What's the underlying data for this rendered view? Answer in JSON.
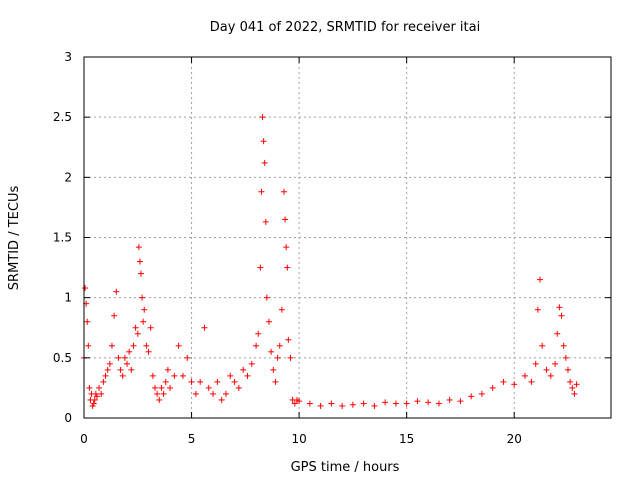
{
  "chart_data": {
    "type": "scatter",
    "title": "Day 041 of 2022, SRMTID for receiver itai",
    "xlabel": "GPS time / hours",
    "ylabel": "SRMTID / TECUs",
    "xlim": [
      0,
      24.5
    ],
    "ylim": [
      0,
      3
    ],
    "xticks": [
      0,
      5,
      10,
      15,
      20
    ],
    "yticks": [
      0,
      0.5,
      1,
      1.5,
      2,
      2.5,
      3
    ],
    "xtick_labels": [
      "0",
      "5",
      "10",
      "15",
      "20"
    ],
    "ytick_labels": [
      "0",
      "0.5",
      "1",
      "1.5",
      "2",
      "2.5",
      "3"
    ],
    "grid": true,
    "marker": "+",
    "color": "#ff0000",
    "series": [
      {
        "name": "SRMTID",
        "x": [
          0.0,
          0.05,
          0.1,
          0.15,
          0.2,
          0.25,
          0.3,
          0.35,
          0.4,
          0.45,
          0.5,
          0.55,
          0.6,
          0.7,
          0.8,
          0.9,
          1.0,
          1.1,
          1.2,
          1.3,
          1.4,
          1.5,
          1.6,
          1.7,
          1.8,
          1.9,
          2.0,
          2.1,
          2.2,
          2.3,
          2.4,
          2.5,
          2.55,
          2.6,
          2.65,
          2.7,
          2.75,
          2.8,
          2.9,
          3.0,
          3.1,
          3.2,
          3.3,
          3.4,
          3.5,
          3.6,
          3.7,
          3.8,
          3.9,
          4.0,
          4.2,
          4.4,
          4.6,
          4.8,
          5.0,
          5.2,
          5.4,
          5.6,
          5.8,
          6.0,
          6.2,
          6.4,
          6.6,
          6.8,
          7.0,
          7.2,
          7.4,
          7.6,
          7.8,
          8.0,
          8.1,
          8.2,
          8.25,
          8.3,
          8.35,
          8.4,
          8.45,
          8.5,
          8.6,
          8.7,
          8.8,
          8.9,
          9.0,
          9.1,
          9.2,
          9.3,
          9.35,
          9.4,
          9.45,
          9.5,
          9.6,
          9.7,
          9.8,
          9.9,
          10.0,
          10.5,
          11.0,
          11.5,
          12.0,
          12.5,
          13.0,
          13.5,
          14.0,
          14.5,
          15.0,
          15.5,
          16.0,
          16.5,
          17.0,
          17.5,
          18.0,
          18.5,
          19.0,
          19.5,
          20.0,
          20.5,
          20.8,
          21.0,
          21.1,
          21.2,
          21.3,
          21.5,
          21.7,
          21.9,
          22.0,
          22.1,
          22.2,
          22.3,
          22.4,
          22.5,
          22.6,
          22.7,
          22.8,
          22.9
        ],
        "y": [
          0.5,
          1.08,
          0.95,
          0.8,
          0.6,
          0.25,
          0.15,
          0.2,
          0.1,
          0.12,
          0.15,
          0.2,
          0.18,
          0.25,
          0.2,
          0.3,
          0.35,
          0.4,
          0.45,
          0.6,
          0.85,
          1.05,
          0.5,
          0.4,
          0.35,
          0.5,
          0.45,
          0.55,
          0.4,
          0.6,
          0.75,
          0.7,
          1.42,
          1.3,
          1.2,
          1.0,
          0.8,
          0.9,
          0.6,
          0.55,
          0.75,
          0.35,
          0.25,
          0.2,
          0.15,
          0.25,
          0.2,
          0.3,
          0.4,
          0.25,
          0.35,
          0.6,
          0.35,
          0.5,
          0.3,
          0.2,
          0.3,
          0.75,
          0.25,
          0.2,
          0.3,
          0.15,
          0.2,
          0.35,
          0.3,
          0.25,
          0.4,
          0.35,
          0.45,
          0.6,
          0.7,
          1.25,
          1.88,
          2.5,
          2.3,
          2.12,
          1.63,
          1.0,
          0.8,
          0.55,
          0.4,
          0.3,
          0.5,
          0.6,
          0.9,
          1.88,
          1.65,
          1.42,
          1.25,
          0.65,
          0.5,
          0.15,
          0.12,
          0.15,
          0.14,
          0.12,
          0.1,
          0.12,
          0.1,
          0.11,
          0.12,
          0.1,
          0.13,
          0.12,
          0.12,
          0.14,
          0.13,
          0.12,
          0.15,
          0.14,
          0.18,
          0.2,
          0.25,
          0.3,
          0.28,
          0.35,
          0.3,
          0.45,
          0.9,
          1.15,
          0.6,
          0.4,
          0.35,
          0.45,
          0.7,
          0.92,
          0.85,
          0.6,
          0.5,
          0.4,
          0.3,
          0.25,
          0.2,
          0.28
        ]
      }
    ]
  }
}
